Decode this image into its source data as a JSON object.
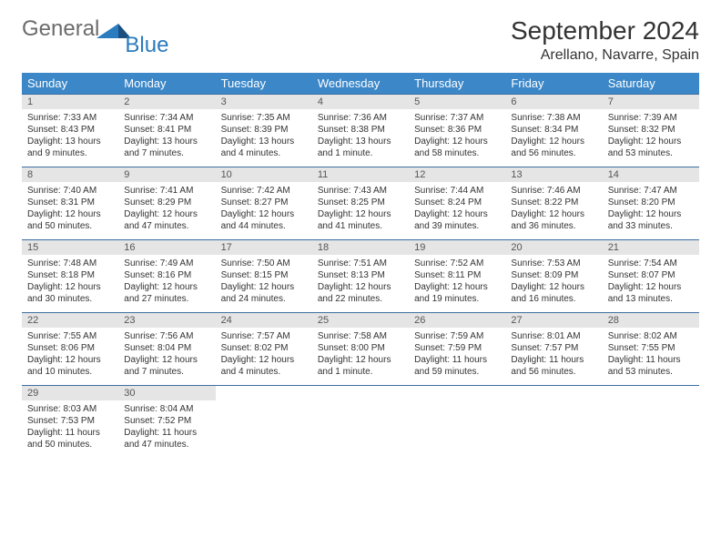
{
  "logo": {
    "general": "General",
    "blue": "Blue"
  },
  "title": "September 2024",
  "location": "Arellano, Navarre, Spain",
  "colors": {
    "header_bg": "#3b87c8",
    "header_text": "#ffffff",
    "daynum_bg": "#e5e5e5",
    "border": "#3b6ea0",
    "logo_gray": "#6b6b6b",
    "logo_blue": "#2b7bbf"
  },
  "weekdays": [
    "Sunday",
    "Monday",
    "Tuesday",
    "Wednesday",
    "Thursday",
    "Friday",
    "Saturday"
  ],
  "weeks": [
    [
      {
        "day": "1",
        "sunrise": "Sunrise: 7:33 AM",
        "sunset": "Sunset: 8:43 PM",
        "daylight": "Daylight: 13 hours and 9 minutes."
      },
      {
        "day": "2",
        "sunrise": "Sunrise: 7:34 AM",
        "sunset": "Sunset: 8:41 PM",
        "daylight": "Daylight: 13 hours and 7 minutes."
      },
      {
        "day": "3",
        "sunrise": "Sunrise: 7:35 AM",
        "sunset": "Sunset: 8:39 PM",
        "daylight": "Daylight: 13 hours and 4 minutes."
      },
      {
        "day": "4",
        "sunrise": "Sunrise: 7:36 AM",
        "sunset": "Sunset: 8:38 PM",
        "daylight": "Daylight: 13 hours and 1 minute."
      },
      {
        "day": "5",
        "sunrise": "Sunrise: 7:37 AM",
        "sunset": "Sunset: 8:36 PM",
        "daylight": "Daylight: 12 hours and 58 minutes."
      },
      {
        "day": "6",
        "sunrise": "Sunrise: 7:38 AM",
        "sunset": "Sunset: 8:34 PM",
        "daylight": "Daylight: 12 hours and 56 minutes."
      },
      {
        "day": "7",
        "sunrise": "Sunrise: 7:39 AM",
        "sunset": "Sunset: 8:32 PM",
        "daylight": "Daylight: 12 hours and 53 minutes."
      }
    ],
    [
      {
        "day": "8",
        "sunrise": "Sunrise: 7:40 AM",
        "sunset": "Sunset: 8:31 PM",
        "daylight": "Daylight: 12 hours and 50 minutes."
      },
      {
        "day": "9",
        "sunrise": "Sunrise: 7:41 AM",
        "sunset": "Sunset: 8:29 PM",
        "daylight": "Daylight: 12 hours and 47 minutes."
      },
      {
        "day": "10",
        "sunrise": "Sunrise: 7:42 AM",
        "sunset": "Sunset: 8:27 PM",
        "daylight": "Daylight: 12 hours and 44 minutes."
      },
      {
        "day": "11",
        "sunrise": "Sunrise: 7:43 AM",
        "sunset": "Sunset: 8:25 PM",
        "daylight": "Daylight: 12 hours and 41 minutes."
      },
      {
        "day": "12",
        "sunrise": "Sunrise: 7:44 AM",
        "sunset": "Sunset: 8:24 PM",
        "daylight": "Daylight: 12 hours and 39 minutes."
      },
      {
        "day": "13",
        "sunrise": "Sunrise: 7:46 AM",
        "sunset": "Sunset: 8:22 PM",
        "daylight": "Daylight: 12 hours and 36 minutes."
      },
      {
        "day": "14",
        "sunrise": "Sunrise: 7:47 AM",
        "sunset": "Sunset: 8:20 PM",
        "daylight": "Daylight: 12 hours and 33 minutes."
      }
    ],
    [
      {
        "day": "15",
        "sunrise": "Sunrise: 7:48 AM",
        "sunset": "Sunset: 8:18 PM",
        "daylight": "Daylight: 12 hours and 30 minutes."
      },
      {
        "day": "16",
        "sunrise": "Sunrise: 7:49 AM",
        "sunset": "Sunset: 8:16 PM",
        "daylight": "Daylight: 12 hours and 27 minutes."
      },
      {
        "day": "17",
        "sunrise": "Sunrise: 7:50 AM",
        "sunset": "Sunset: 8:15 PM",
        "daylight": "Daylight: 12 hours and 24 minutes."
      },
      {
        "day": "18",
        "sunrise": "Sunrise: 7:51 AM",
        "sunset": "Sunset: 8:13 PM",
        "daylight": "Daylight: 12 hours and 22 minutes."
      },
      {
        "day": "19",
        "sunrise": "Sunrise: 7:52 AM",
        "sunset": "Sunset: 8:11 PM",
        "daylight": "Daylight: 12 hours and 19 minutes."
      },
      {
        "day": "20",
        "sunrise": "Sunrise: 7:53 AM",
        "sunset": "Sunset: 8:09 PM",
        "daylight": "Daylight: 12 hours and 16 minutes."
      },
      {
        "day": "21",
        "sunrise": "Sunrise: 7:54 AM",
        "sunset": "Sunset: 8:07 PM",
        "daylight": "Daylight: 12 hours and 13 minutes."
      }
    ],
    [
      {
        "day": "22",
        "sunrise": "Sunrise: 7:55 AM",
        "sunset": "Sunset: 8:06 PM",
        "daylight": "Daylight: 12 hours and 10 minutes."
      },
      {
        "day": "23",
        "sunrise": "Sunrise: 7:56 AM",
        "sunset": "Sunset: 8:04 PM",
        "daylight": "Daylight: 12 hours and 7 minutes."
      },
      {
        "day": "24",
        "sunrise": "Sunrise: 7:57 AM",
        "sunset": "Sunset: 8:02 PM",
        "daylight": "Daylight: 12 hours and 4 minutes."
      },
      {
        "day": "25",
        "sunrise": "Sunrise: 7:58 AM",
        "sunset": "Sunset: 8:00 PM",
        "daylight": "Daylight: 12 hours and 1 minute."
      },
      {
        "day": "26",
        "sunrise": "Sunrise: 7:59 AM",
        "sunset": "Sunset: 7:59 PM",
        "daylight": "Daylight: 11 hours and 59 minutes."
      },
      {
        "day": "27",
        "sunrise": "Sunrise: 8:01 AM",
        "sunset": "Sunset: 7:57 PM",
        "daylight": "Daylight: 11 hours and 56 minutes."
      },
      {
        "day": "28",
        "sunrise": "Sunrise: 8:02 AM",
        "sunset": "Sunset: 7:55 PM",
        "daylight": "Daylight: 11 hours and 53 minutes."
      }
    ],
    [
      {
        "day": "29",
        "sunrise": "Sunrise: 8:03 AM",
        "sunset": "Sunset: 7:53 PM",
        "daylight": "Daylight: 11 hours and 50 minutes."
      },
      {
        "day": "30",
        "sunrise": "Sunrise: 8:04 AM",
        "sunset": "Sunset: 7:52 PM",
        "daylight": "Daylight: 11 hours and 47 minutes."
      },
      null,
      null,
      null,
      null,
      null
    ]
  ]
}
